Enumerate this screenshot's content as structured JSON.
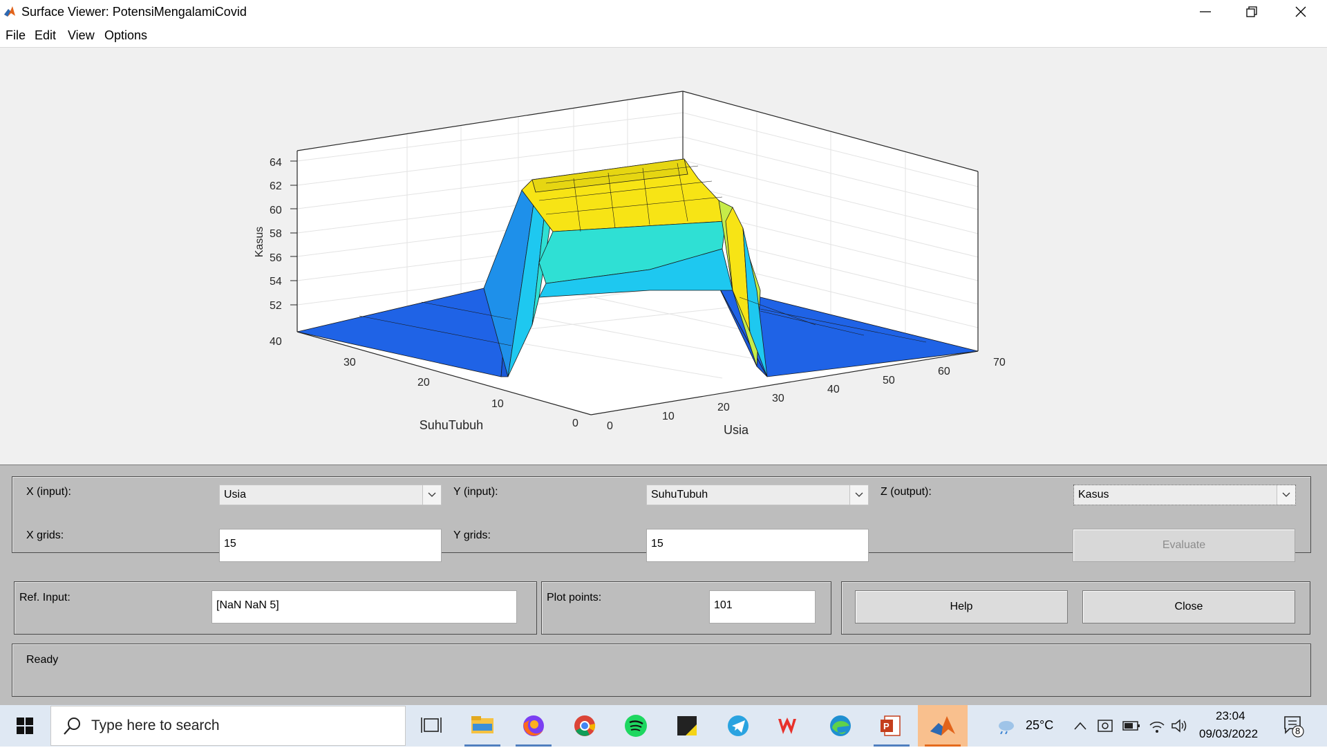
{
  "window": {
    "title": "Surface Viewer: PotensiMengalamiCovid"
  },
  "menu": [
    "File",
    "Edit",
    "View",
    "Options"
  ],
  "plot": {
    "z_label": "Kasus",
    "x_label": "Usia",
    "y_label": "SuhuTubuh",
    "z_ticks": [
      "64",
      "62",
      "60",
      "58",
      "56",
      "54",
      "52",
      "40"
    ],
    "x_ticks": [
      "0",
      "10",
      "20",
      "30",
      "40",
      "50",
      "60",
      "70"
    ],
    "y_ticks": [
      "30",
      "20",
      "10",
      "0"
    ],
    "colors": {
      "low": "#1f63e6",
      "mid": "#2fe0d4",
      "high": "#f7e415",
      "cyan": "#1ec8f0"
    }
  },
  "controls": {
    "x_input_label": "X (input):",
    "x_input_value": "Usia",
    "y_input_label": "Y (input):",
    "y_input_value": "SuhuTubuh",
    "z_output_label": "Z (output):",
    "z_output_value": "Kasus",
    "x_grids_label": "X grids:",
    "x_grids_value": "15",
    "y_grids_label": "Y grids:",
    "y_grids_value": "15",
    "evaluate_label": "Evaluate",
    "ref_input_label": "Ref. Input:",
    "ref_input_value": "[NaN NaN 5]",
    "plot_points_label": "Plot points:",
    "plot_points_value": "101",
    "help_label": "Help",
    "close_label": "Close",
    "status": "Ready"
  },
  "taskbar": {
    "search_placeholder": "Type here to search",
    "weather": "25°C",
    "time": "23:04",
    "date": "09/03/2022",
    "notification_count": "8"
  }
}
